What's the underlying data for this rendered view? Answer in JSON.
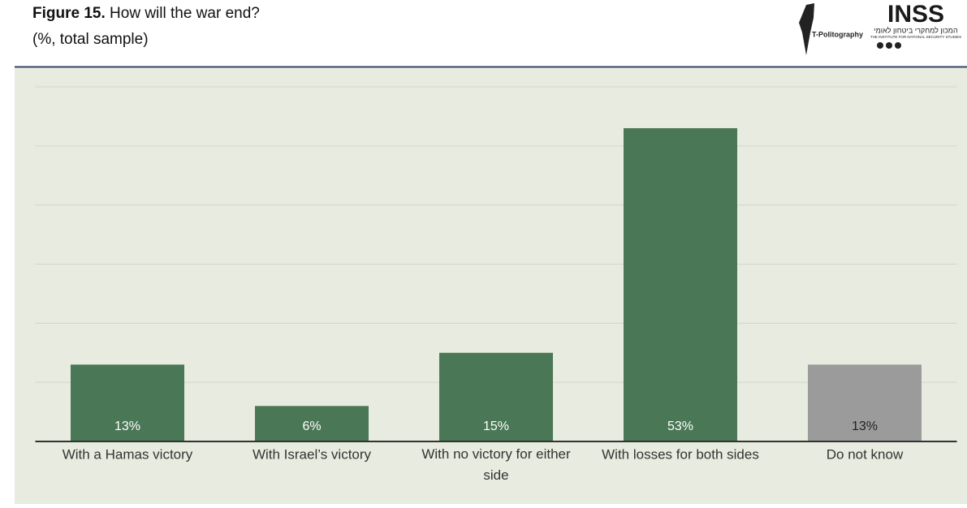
{
  "header": {
    "figure_label": "Figure 15.",
    "subtitle": "(%, total sample)",
    "logo_left": "T-Politography",
    "logo_right": "INSS",
    "logo_right_hebrew": "המכון למחקרי ביטחון לאומי",
    "logo_right_english": "THE INSTITUTE FOR NATIONAL SECURITY STUDIES"
  },
  "chart_data": {
    "type": "bar",
    "title": "How will the war end?",
    "categories": [
      "With a Hamas victory",
      "With Israel’s victory",
      "With no victory for either side",
      "With losses for both sides",
      "Do not know"
    ],
    "values": [
      13,
      6,
      15,
      53,
      13
    ],
    "value_labels": [
      "13%",
      "6%",
      "15%",
      "53%",
      "13%"
    ],
    "colors": [
      "#4a7755",
      "#4a7755",
      "#4a7755",
      "#4a7755",
      "#9b9b9b"
    ],
    "value_label_colors": [
      "#ffffff",
      "#ffffff",
      "#ffffff",
      "#ffffff",
      "#222222"
    ],
    "ylim": [
      0,
      60
    ],
    "yticks": [
      0,
      10,
      20,
      30,
      40,
      50,
      60
    ],
    "grid": true
  }
}
